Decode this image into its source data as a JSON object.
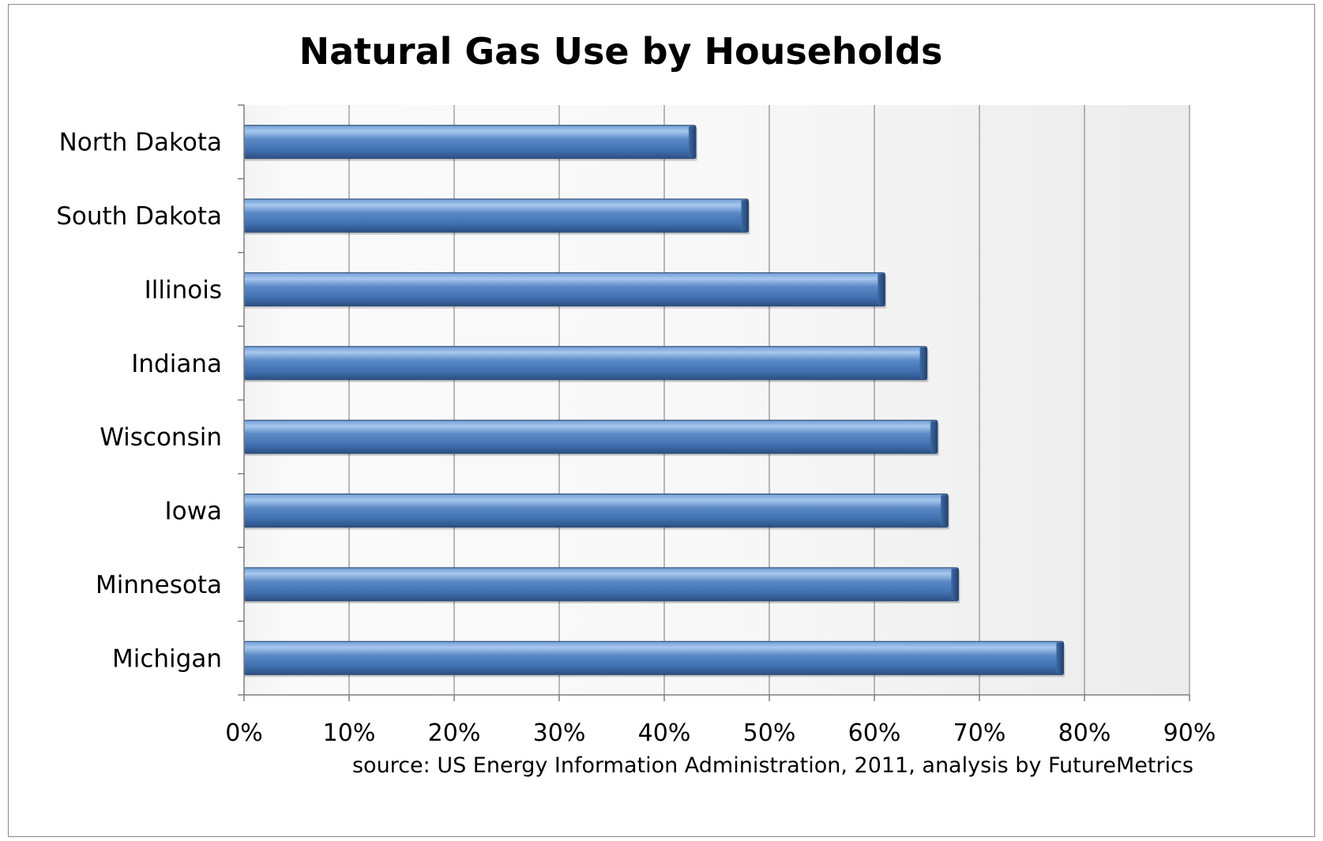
{
  "chart_data": {
    "type": "bar",
    "orientation": "horizontal",
    "title": "Natural Gas Use by Households",
    "source": "source: US Energy Information Administration, 2011, analysis by FutureMetrics",
    "categories": [
      "North Dakota",
      "South Dakota",
      "Illinois",
      "Indiana",
      "Wisconsin",
      "Iowa",
      "Minnesota",
      "Michigan"
    ],
    "values": [
      43,
      48,
      61,
      65,
      66,
      67,
      68,
      78
    ],
    "value_unit": "%",
    "xlim": [
      0,
      90
    ],
    "x_ticks": [
      0,
      10,
      20,
      30,
      40,
      50,
      60,
      70,
      80,
      90
    ],
    "x_tick_labels": [
      "0%",
      "10%",
      "20%",
      "30%",
      "40%",
      "50%",
      "60%",
      "70%",
      "80%",
      "90%"
    ],
    "xlabel": "",
    "ylabel": "",
    "grid": "vertical",
    "legend": "none",
    "colors": {
      "bar": "#4f81bd",
      "bar_highlight": "#9cc1ec",
      "bar_edge": "#2c4d78",
      "gridline": "#8c8c8c",
      "plot_band_light": "#ffffff",
      "plot_band_dark": "#eeeeee"
    }
  }
}
